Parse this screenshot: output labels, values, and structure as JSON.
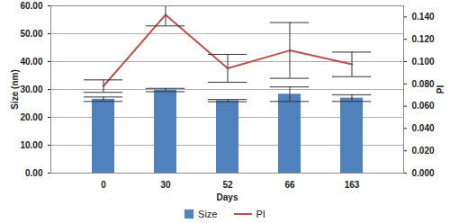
{
  "chart_data": {
    "type": "bar",
    "categories": [
      "0",
      "30",
      "52",
      "66",
      "163"
    ],
    "x_label": "Days",
    "y_label": "Size (nm)",
    "y2_label": "PI",
    "series": [
      {
        "name": "Size",
        "type": "bar",
        "color": "#4f81bd",
        "values": [
          26.5,
          29.8,
          26.0,
          28.3,
          26.9
        ],
        "errors": [
          0.8,
          0.6,
          0.4,
          2.6,
          1.2
        ]
      },
      {
        "name": "PI",
        "type": "line",
        "axis": "y2",
        "color": "#c0504d",
        "values": [
          0.078,
          0.142,
          0.094,
          0.11,
          0.0975
        ],
        "errors": [
          0.0056,
          0.01,
          0.0125,
          0.025,
          0.011
        ]
      }
    ],
    "ylim": [
      0,
      60
    ],
    "yticks": [
      {
        "value": 0,
        "label": "0.00"
      },
      {
        "value": 10,
        "label": "10.00"
      },
      {
        "value": 20,
        "label": "20.00"
      },
      {
        "value": 30,
        "label": "30.00"
      },
      {
        "value": 40,
        "label": "40.00"
      },
      {
        "value": 50,
        "label": "50.00"
      },
      {
        "value": 60,
        "label": "60.00"
      }
    ],
    "y2lim": [
      0,
      0.15
    ],
    "y2ticks": [
      {
        "value": 0,
        "label": "0.000"
      },
      {
        "value": 0.02,
        "label": "0.020"
      },
      {
        "value": 0.04,
        "label": "0.040"
      },
      {
        "value": 0.06,
        "label": "0.060"
      },
      {
        "value": 0.08,
        "label": "0.080"
      },
      {
        "value": 0.1,
        "label": "0.100"
      },
      {
        "value": 0.12,
        "label": "0.120"
      },
      {
        "value": 0.14,
        "label": "0.140"
      }
    ],
    "grid": true,
    "legend": "bottom"
  }
}
